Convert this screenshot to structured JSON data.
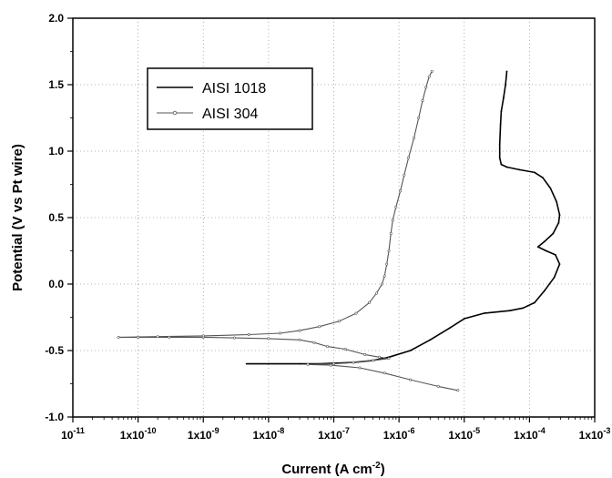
{
  "chart_data": {
    "type": "line",
    "x_scale": "log",
    "xlabel_main": "Current (A cm",
    "xlabel_sup": "-2",
    "xlabel_end": ")",
    "ylabel": "Potential (V vs Pt wire)",
    "xlim": [
      1e-11,
      0.001
    ],
    "ylim": [
      -1.0,
      2.0
    ],
    "grid": true,
    "legend_position": "top-left",
    "x_ticks": [
      {
        "value": 1e-11,
        "base": "10",
        "exp": "-11"
      },
      {
        "value": 1e-10,
        "base": "1x10",
        "exp": "-10"
      },
      {
        "value": 1e-09,
        "base": "1x10",
        "exp": "-9"
      },
      {
        "value": 1e-08,
        "base": "1x10",
        "exp": "-8"
      },
      {
        "value": 1e-07,
        "base": "1x10",
        "exp": "-7"
      },
      {
        "value": 1e-06,
        "base": "1x10",
        "exp": "-6"
      },
      {
        "value": 1e-05,
        "base": "1x10",
        "exp": "-5"
      },
      {
        "value": 0.0001,
        "base": "1x10",
        "exp": "-4"
      },
      {
        "value": 0.001,
        "base": "1x10",
        "exp": "-3"
      }
    ],
    "y_ticks": [
      {
        "value": -1.0,
        "label": "-1.0"
      },
      {
        "value": -0.5,
        "label": "-0.5"
      },
      {
        "value": 0.0,
        "label": "0.0"
      },
      {
        "value": 0.5,
        "label": "0.5"
      },
      {
        "value": 1.0,
        "label": "1.0"
      },
      {
        "value": 1.5,
        "label": "1.5"
      },
      {
        "value": 2.0,
        "label": "2.0"
      }
    ],
    "series": [
      {
        "name": "AISI 1018",
        "color": "#000000",
        "marker": "none",
        "points": [
          [
            4.6e-09,
            -0.6
          ],
          [
            1e-08,
            -0.6
          ],
          [
            3e-08,
            -0.6
          ],
          [
            6e-08,
            -0.6
          ],
          [
            1e-07,
            -0.595
          ],
          [
            2e-07,
            -0.59
          ],
          [
            4e-07,
            -0.575
          ],
          [
            7e-07,
            -0.55
          ],
          [
            1.5e-06,
            -0.5
          ],
          [
            3e-06,
            -0.42
          ],
          [
            6e-06,
            -0.33
          ],
          [
            1e-05,
            -0.26
          ],
          [
            2e-05,
            -0.22
          ],
          [
            5e-05,
            -0.2
          ],
          [
            8e-05,
            -0.18
          ],
          [
            0.00012,
            -0.14
          ],
          [
            0.00017,
            -0.05
          ],
          [
            0.00024,
            0.05
          ],
          [
            0.00029,
            0.15
          ],
          [
            0.00025,
            0.22
          ],
          [
            0.00018,
            0.25
          ],
          [
            0.000135,
            0.28
          ],
          [
            0.00017,
            0.32
          ],
          [
            0.00023,
            0.38
          ],
          [
            0.00028,
            0.46
          ],
          [
            0.00029,
            0.52
          ],
          [
            0.00026,
            0.62
          ],
          [
            0.00021,
            0.72
          ],
          [
            0.00016,
            0.8
          ],
          [
            0.00012,
            0.84
          ],
          [
            7e-05,
            0.86
          ],
          [
            4.5e-05,
            0.88
          ],
          [
            3.7e-05,
            0.9
          ],
          [
            3.5e-05,
            0.95
          ],
          [
            3.5e-05,
            1.05
          ],
          [
            3.6e-05,
            1.2
          ],
          [
            3.7e-05,
            1.3
          ],
          [
            4e-05,
            1.4
          ],
          [
            4.3e-05,
            1.5
          ],
          [
            4.5e-05,
            1.6
          ]
        ]
      },
      {
        "name": "AISI 304",
        "color": "#555555",
        "marker": "small-circle",
        "points": [
          [
            8e-06,
            -0.8
          ],
          [
            4e-06,
            -0.77
          ],
          [
            1.5e-06,
            -0.72
          ],
          [
            6e-07,
            -0.67
          ],
          [
            2.5e-07,
            -0.63
          ],
          [
            9e-08,
            -0.61
          ],
          [
            4e-08,
            -0.605
          ],
          [
            1e-07,
            -0.6
          ],
          [
            2e-07,
            -0.59
          ],
          [
            4e-07,
            -0.575
          ],
          [
            7e-07,
            -0.56
          ],
          [
            5e-07,
            -0.55
          ],
          [
            3e-07,
            -0.53
          ],
          [
            1.5e-07,
            -0.49
          ],
          [
            8e-08,
            -0.47
          ],
          [
            5e-08,
            -0.44
          ],
          [
            3e-08,
            -0.42
          ],
          [
            1e-08,
            -0.41
          ],
          [
            3e-09,
            -0.405
          ],
          [
            1e-09,
            -0.4
          ],
          [
            3e-10,
            -0.4
          ],
          [
            1e-10,
            -0.4
          ],
          [
            5e-11,
            -0.4
          ],
          [
            2e-10,
            -0.395
          ],
          [
            1e-09,
            -0.39
          ],
          [
            5e-09,
            -0.38
          ],
          [
            1.5e-08,
            -0.37
          ],
          [
            3e-08,
            -0.35
          ],
          [
            6e-08,
            -0.32
          ],
          [
            1.2e-07,
            -0.28
          ],
          [
            2.2e-07,
            -0.22
          ],
          [
            3.5e-07,
            -0.14
          ],
          [
            4.5e-07,
            -0.07
          ],
          [
            5.5e-07,
            0.0
          ],
          [
            6e-07,
            0.06
          ],
          [
            6.5e-07,
            0.15
          ],
          [
            7e-07,
            0.25
          ],
          [
            7.5e-07,
            0.38
          ],
          [
            8e-07,
            0.48
          ],
          [
            9e-07,
            0.58
          ],
          [
            1.05e-06,
            0.7
          ],
          [
            1.2e-06,
            0.82
          ],
          [
            1.4e-06,
            0.95
          ],
          [
            1.7e-06,
            1.1
          ],
          [
            2e-06,
            1.25
          ],
          [
            2.3e-06,
            1.38
          ],
          [
            2.6e-06,
            1.48
          ],
          [
            2.9e-06,
            1.56
          ],
          [
            3.2e-06,
            1.6
          ]
        ]
      }
    ]
  }
}
